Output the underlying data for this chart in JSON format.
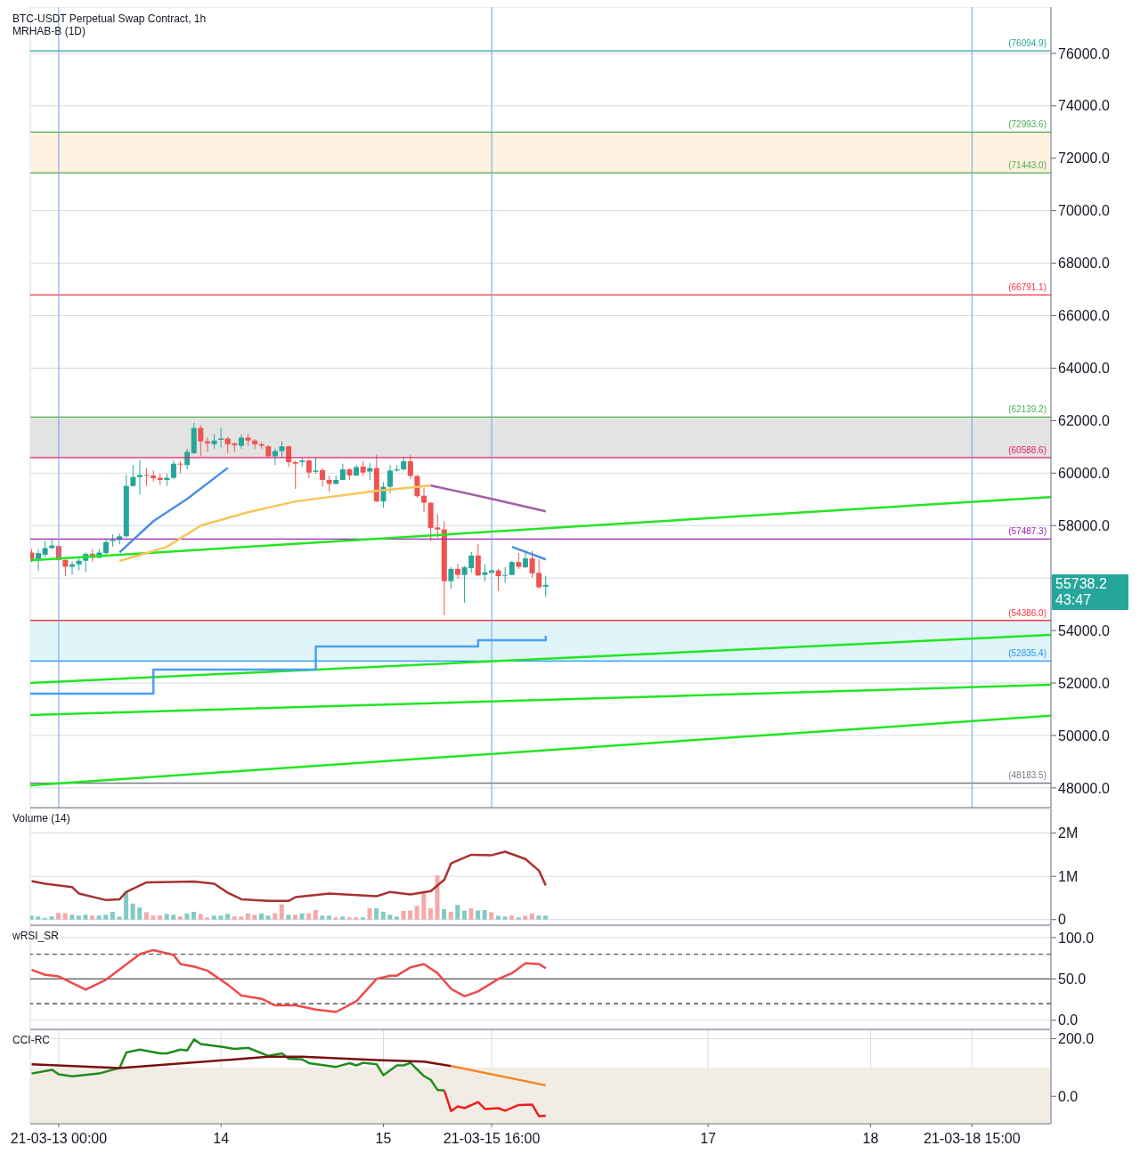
{
  "chart_data": [
    {
      "type": "candlestick",
      "title": "BTC-USDT Perpetual Swap Contract, 1h",
      "subtitle": "MRHAB-B (1D)",
      "annotations": [
        "55738.2",
        "43:47"
      ],
      "tick_labels": "y",
      "grid": true,
      "xlim": [
        "--03-12T19:48",
        "--03-19T02:40"
      ],
      "xticks": [
        {
          "value": "--03-13T00:00",
          "label": "21-03-13 00:00"
        },
        {
          "value": "--03-14T00:00",
          "label": "14"
        },
        {
          "value": "--03-15T00:00",
          "label": "15"
        },
        {
          "value": "--03-15T16:00",
          "label": "21-03-15 16:00"
        },
        {
          "value": "--03-17T00:00",
          "label": "17"
        },
        {
          "value": "--03-18T00:00",
          "label": "18"
        },
        {
          "value": "--03-18T15:00",
          "label": "21-03-18 15:00"
        }
      ],
      "ylim": [
        47250,
        77760
      ],
      "yticks": [
        {
          "value": 48000,
          "label": "48000.0"
        },
        {
          "value": 50000,
          "label": "50000.0"
        },
        {
          "value": 52000,
          "label": "52000.0"
        },
        {
          "value": 54000,
          "label": "54000.0"
        },
        {
          "value": 56000,
          "label": null
        },
        {
          "value": 58000,
          "label": "58000.0"
        },
        {
          "value": 60000,
          "label": "60000.0"
        },
        {
          "value": 62000,
          "label": "62000.0"
        },
        {
          "value": 64000,
          "label": "64000.0"
        },
        {
          "value": 66000,
          "label": "66000.0"
        },
        {
          "value": 68000,
          "label": "68000.0"
        },
        {
          "value": 70000,
          "label": "70000.0"
        },
        {
          "value": 72000,
          "label": "72000.0"
        },
        {
          "value": 74000,
          "label": "74000.0"
        },
        {
          "value": 76000,
          "label": "76000.0"
        }
      ],
      "x": [
        "--03-12T20:00",
        "--03-12T21:00",
        "--03-12T22:00",
        "--03-12T23:00",
        "--03-13T00:00",
        "--03-13T01:00",
        "--03-13T02:00",
        "--03-13T03:00",
        "--03-13T04:00",
        "--03-13T05:00",
        "--03-13T06:00",
        "--03-13T07:00",
        "--03-13T08:00",
        "--03-13T09:00",
        "--03-13T10:00",
        "--03-13T11:00",
        "--03-13T12:00",
        "--03-13T13:00",
        "--03-13T14:00",
        "--03-13T15:00",
        "--03-13T16:00",
        "--03-13T17:00",
        "--03-13T18:00",
        "--03-13T19:00",
        "--03-13T20:00",
        "--03-13T21:00",
        "--03-13T22:00",
        "--03-13T23:00",
        "--03-14T00:00",
        "--03-14T01:00",
        "--03-14T02:00",
        "--03-14T03:00",
        "--03-14T04:00",
        "--03-14T05:00",
        "--03-14T06:00",
        "--03-14T07:00",
        "--03-14T08:00",
        "--03-14T09:00",
        "--03-14T10:00",
        "--03-14T11:00",
        "--03-14T12:00",
        "--03-14T13:00",
        "--03-14T14:00",
        "--03-14T15:00",
        "--03-14T16:00",
        "--03-14T17:00",
        "--03-14T18:00",
        "--03-14T19:00",
        "--03-14T20:00",
        "--03-14T21:00",
        "--03-14T22:00",
        "--03-14T23:00",
        "--03-15T00:00",
        "--03-15T01:00",
        "--03-15T02:00",
        "--03-15T03:00",
        "--03-15T04:00",
        "--03-15T05:00",
        "--03-15T06:00",
        "--03-15T07:00",
        "--03-15T08:00",
        "--03-15T09:00",
        "--03-15T10:00",
        "--03-15T11:00",
        "--03-15T12:00",
        "--03-15T13:00",
        "--03-15T14:00",
        "--03-15T15:00",
        "--03-15T16:00",
        "--03-15T17:00",
        "--03-15T18:00",
        "--03-15T19:00",
        "--03-15T20:00",
        "--03-15T21:00",
        "--03-15T22:00",
        "--03-15T23:00",
        "--03-16T00:00"
      ],
      "ohlc": [
        [
          56970,
          57110,
          56610,
          56720
        ],
        [
          56690,
          57090,
          56270,
          56950
        ],
        [
          56890,
          57420,
          56800,
          57140
        ],
        [
          57140,
          57480,
          57110,
          57240
        ],
        [
          57220,
          57250,
          56660,
          56690
        ],
        [
          56690,
          56720,
          56070,
          56430
        ],
        [
          56430,
          56630,
          56120,
          56520
        ],
        [
          56520,
          56770,
          56290,
          56660
        ],
        [
          56660,
          56970,
          56240,
          56920
        ],
        [
          56920,
          57110,
          56630,
          56770
        ],
        [
          56770,
          57110,
          56750,
          56970
        ],
        [
          56950,
          57480,
          56860,
          57370
        ],
        [
          57400,
          57670,
          57200,
          57450
        ],
        [
          57450,
          57710,
          57290,
          57590
        ],
        [
          57590,
          59930,
          57540,
          59510
        ],
        [
          59510,
          60310,
          59480,
          59850
        ],
        [
          59850,
          60500,
          59180,
          59930
        ],
        [
          59930,
          60190,
          59510,
          59910
        ],
        [
          59910,
          60110,
          59680,
          59800
        ],
        [
          59820,
          59970,
          59550,
          59740
        ],
        [
          59740,
          59970,
          59510,
          59820
        ],
        [
          59820,
          60480,
          59770,
          60360
        ],
        [
          60360,
          60440,
          60000,
          60330
        ],
        [
          60310,
          60930,
          60140,
          60810
        ],
        [
          60760,
          61920,
          60720,
          61720
        ],
        [
          61720,
          61830,
          60640,
          61210
        ],
        [
          61210,
          61360,
          60810,
          61130
        ],
        [
          61100,
          61490,
          60930,
          61240
        ],
        [
          61270,
          61720,
          60980,
          61320
        ],
        [
          61320,
          61380,
          60760,
          61100
        ],
        [
          61130,
          61180,
          60810,
          61060
        ],
        [
          61040,
          61470,
          60930,
          61350
        ],
        [
          61350,
          61490,
          61040,
          61240
        ],
        [
          61240,
          61290,
          60930,
          61100
        ],
        [
          61100,
          61180,
          60930,
          61040
        ],
        [
          61020,
          61060,
          60610,
          60640
        ],
        [
          60640,
          60930,
          60310,
          60840
        ],
        [
          60840,
          61210,
          60590,
          61020
        ],
        [
          61020,
          61040,
          60230,
          60420
        ],
        [
          60420,
          60480,
          59400,
          60360
        ],
        [
          60420,
          60590,
          60250,
          60480
        ],
        [
          60480,
          60530,
          59800,
          60020
        ],
        [
          60050,
          60590,
          59970,
          60100
        ],
        [
          60110,
          60190,
          59480,
          59740
        ],
        [
          59740,
          59910,
          59290,
          59590
        ],
        [
          59590,
          59910,
          59570,
          59740
        ],
        [
          59740,
          60360,
          59740,
          60140
        ],
        [
          60140,
          60190,
          59740,
          59910
        ],
        [
          59910,
          60310,
          59890,
          60230
        ],
        [
          60250,
          60450,
          59890,
          60020
        ],
        [
          60060,
          60390,
          59740,
          60190
        ],
        [
          60190,
          60700,
          58900,
          58920
        ],
        [
          58920,
          59660,
          58670,
          59480
        ],
        [
          59480,
          60310,
          59230,
          60100
        ],
        [
          60100,
          60310,
          60050,
          60140
        ],
        [
          60140,
          60590,
          60110,
          60450
        ],
        [
          60450,
          60700,
          59770,
          59890
        ],
        [
          59890,
          59930,
          59060,
          59120
        ],
        [
          59140,
          59440,
          58500,
          58870
        ],
        [
          58870,
          58890,
          57400,
          57910
        ],
        [
          57930,
          58440,
          57540,
          57850
        ],
        [
          57850,
          58160,
          54580,
          55880
        ],
        [
          55880,
          56410,
          55590,
          56350
        ],
        [
          56350,
          56540,
          55980,
          56120
        ],
        [
          56120,
          56460,
          55050,
          56410
        ],
        [
          56380,
          57000,
          56200,
          56860
        ],
        [
          56860,
          57290,
          56070,
          56100
        ],
        [
          56120,
          56520,
          55880,
          56220
        ],
        [
          56200,
          56350,
          56180,
          56290
        ],
        [
          56290,
          56350,
          55500,
          56070
        ],
        [
          56090,
          56410,
          55820,
          56120
        ],
        [
          56120,
          56660,
          56100,
          56610
        ],
        [
          56610,
          56950,
          56350,
          56430
        ],
        [
          56410,
          56970,
          56380,
          56750
        ],
        [
          56750,
          57030,
          56010,
          56180
        ],
        [
          56200,
          56720,
          55590,
          55650
        ],
        [
          55670,
          56090,
          55280,
          55738.2
        ]
      ],
      "colors": [
        "#ef5350",
        "#26a69a",
        "#26a69a",
        "#26a69a",
        "#ef5350",
        "#ef5350",
        "#26a69a",
        "#26a69a",
        "#26a69a",
        "#ef5350",
        "#26a69a",
        "#26a69a",
        "#26a69a",
        "#26a69a",
        "#26a69a",
        "#26a69a",
        "#26a69a",
        "#ef5350",
        "#ef5350",
        "#ef5350",
        "#26a69a",
        "#26a69a",
        "#ef5350",
        "#26a69a",
        "#26a69a",
        "#ef5350",
        "#ef5350",
        "#26a69a",
        "#26a69a",
        "#ef5350",
        "#ef5350",
        "#26a69a",
        "#ef5350",
        "#ef5350",
        "#ef5350",
        "#ef5350",
        "#26a69a",
        "#26a69a",
        "#ef5350",
        "#ef5350",
        "#26a69a",
        "#ef5350",
        "#26a69a",
        "#ef5350",
        "#ef5350",
        "#26a69a",
        "#26a69a",
        "#ef5350",
        "#26a69a",
        "#ef5350",
        "#26a69a",
        "#ef5350",
        "#26a69a",
        "#26a69a",
        "#26a69a",
        "#26a69a",
        "#ef5350",
        "#ef5350",
        "#ef5350",
        "#ef5350",
        "#ef5350",
        "#ef5350",
        "#26a69a",
        "#ef5350",
        "#26a69a",
        "#26a69a",
        "#ef5350",
        "#26a69a",
        "#26a69a",
        "#ef5350",
        "#26a69a",
        "#26a69a",
        "#ef5350",
        "#26a69a",
        "#ef5350",
        "#ef5350",
        "#26a69a"
      ],
      "series": [
        {
          "type": "line",
          "color": "#22e622",
          "x": [
            "--03-12T19:48",
            "--03-19T02:40"
          ],
          "values": [
            56680,
            59090
          ]
        },
        {
          "type": "line",
          "color": "#22e622",
          "x": [
            "--03-12T19:48",
            "--03-19T02:40"
          ],
          "values": [
            52000,
            53830
          ]
        },
        {
          "type": "line",
          "color": "#22e622",
          "x": [
            "--03-12T19:48",
            "--03-19T02:40"
          ],
          "values": [
            50780,
            51930
          ]
        },
        {
          "type": "line",
          "color": "#22e622",
          "x": [
            "--03-12T19:48",
            "--03-19T02:40"
          ],
          "values": [
            48100,
            50750
          ]
        },
        {
          "type": "line",
          "color": "#f7c557",
          "x": [
            "--03-13T09:00",
            "--03-13T16:00",
            "--03-13T21:00",
            "--03-14T04:00",
            "--03-14T11:00",
            "--03-14T23:00",
            "--03-15T07:00"
          ],
          "values": [
            56650,
            57190,
            58000,
            58510,
            58920,
            59320,
            59530
          ]
        },
        {
          "type": "line",
          "color": "#a35ea8",
          "x": [
            "--03-15T07:00",
            "--03-15T16:00",
            "--03-16T00:00"
          ],
          "values": [
            59530,
            59020,
            58540
          ]
        },
        {
          "type": "line",
          "color": "#4a90e2",
          "x": [
            "--03-13T09:00",
            "--03-13T14:00",
            "--03-13T19:00",
            "--03-14T01:00"
          ],
          "values": [
            56980,
            58170,
            59020,
            60200
          ]
        },
        {
          "type": "line",
          "color": "#4a90e2",
          "x": [
            "--03-15T19:00",
            "--03-16T00:00"
          ],
          "values": [
            57190,
            56710
          ]
        },
        {
          "type": "step",
          "color": "#4a9ff5",
          "x": [
            "--03-12T19:48",
            "--03-13T14:00",
            "--03-14T14:00",
            "--03-15T14:00",
            "--03-16T00:00"
          ],
          "values": [
            51590,
            52510,
            53390,
            53630,
            53800
          ]
        }
      ],
      "ref_lines": [
        {
          "axis": "y",
          "value": 76094.9,
          "label": "(76094.9)",
          "color": "#26a69a"
        },
        {
          "axis": "y",
          "value": 72993.6,
          "label": "(72993.6)",
          "color": "#4caf50"
        },
        {
          "axis": "y",
          "value": 71443.0,
          "label": "(71443.0)",
          "color": "#4caf50"
        },
        {
          "axis": "y",
          "value": 66791.1,
          "label": "(66791.1)",
          "color": "#f23645"
        },
        {
          "axis": "y",
          "value": 62139.2,
          "label": "(62139.2)",
          "color": "#4caf50"
        },
        {
          "axis": "y",
          "value": 60588.6,
          "label": "(60588.6)",
          "color": "#e91e63"
        },
        {
          "axis": "y",
          "value": 57487.3,
          "label": "(57487.3)",
          "color": "#9c27b0"
        },
        {
          "axis": "y",
          "value": 54386.0,
          "label": "(54386.0)",
          "color": "#f23645"
        },
        {
          "axis": "y",
          "value": 52835.4,
          "label": "(52835.4)",
          "color": "#2196f3"
        },
        {
          "axis": "y",
          "value": 48183.5,
          "label": "(48183.5)",
          "color": "#787b86"
        },
        {
          "axis": "x",
          "value": "--03-13T00:00",
          "color": "#6fa0f0"
        },
        {
          "axis": "x",
          "value": "--03-15T16:00",
          "color": "#6fa0f0"
        },
        {
          "axis": "x",
          "value": "--03-18T15:00",
          "color": "#6fa0f0"
        }
      ],
      "bands": [
        {
          "axis": "y",
          "from": 71443.0,
          "to": 72993.6,
          "color": "#fff1e0"
        },
        {
          "axis": "y",
          "from": 60588.6,
          "to": 62139.2,
          "color": "#e3e3e3"
        },
        {
          "axis": "y",
          "from": 52835.4,
          "to": 54386.0,
          "color": "#e0f5fa"
        }
      ]
    },
    {
      "type": "bar",
      "title": "Volume (14)",
      "tick_labels": "y",
      "grid": true,
      "xlim": [
        "--03-12T19:48",
        "--03-19T02:40"
      ],
      "xticks": [
        {
          "value": "--03-13T00:00",
          "label": "21-03-13 00:00"
        },
        {
          "value": "--03-14T00:00",
          "label": "14"
        },
        {
          "value": "--03-15T00:00",
          "label": "15"
        },
        {
          "value": "--03-15T16:00",
          "label": "21-03-15 16:00"
        },
        {
          "value": "--03-17T00:00",
          "label": "17"
        },
        {
          "value": "--03-18T00:00",
          "label": "18"
        },
        {
          "value": "--03-18T15:00",
          "label": "21-03-18 15:00"
        }
      ],
      "ylim": [
        -0.13,
        2.57
      ],
      "yticks": [
        0,
        {
          "value": 1,
          "label": "1M"
        },
        {
          "value": 2,
          "label": "2M"
        }
      ],
      "series": [
        {
          "type": "bar",
          "x": [
            "--03-12T20:00",
            "--03-12T21:00",
            "--03-12T22:00",
            "--03-12T23:00",
            "--03-13T00:00",
            "--03-13T01:00",
            "--03-13T02:00",
            "--03-13T03:00",
            "--03-13T04:00",
            "--03-13T05:00",
            "--03-13T06:00",
            "--03-13T07:00",
            "--03-13T08:00",
            "--03-13T09:00",
            "--03-13T10:00",
            "--03-13T11:00",
            "--03-13T12:00",
            "--03-13T13:00",
            "--03-13T14:00",
            "--03-13T15:00",
            "--03-13T16:00",
            "--03-13T17:00",
            "--03-13T18:00",
            "--03-13T19:00",
            "--03-13T20:00",
            "--03-13T21:00",
            "--03-13T22:00",
            "--03-13T23:00",
            "--03-14T00:00",
            "--03-14T01:00",
            "--03-14T02:00",
            "--03-14T03:00",
            "--03-14T04:00",
            "--03-14T05:00",
            "--03-14T06:00",
            "--03-14T07:00",
            "--03-14T08:00",
            "--03-14T09:00",
            "--03-14T10:00",
            "--03-14T11:00",
            "--03-14T12:00",
            "--03-14T13:00",
            "--03-14T14:00",
            "--03-14T15:00",
            "--03-14T16:00",
            "--03-14T17:00",
            "--03-14T18:00",
            "--03-14T19:00",
            "--03-14T20:00",
            "--03-14T21:00",
            "--03-14T22:00",
            "--03-14T23:00",
            "--03-15T00:00",
            "--03-15T01:00",
            "--03-15T02:00",
            "--03-15T03:00",
            "--03-15T04:00",
            "--03-15T05:00",
            "--03-15T06:00",
            "--03-15T07:00",
            "--03-15T08:00",
            "--03-15T09:00",
            "--03-15T10:00",
            "--03-15T11:00",
            "--03-15T12:00",
            "--03-15T13:00",
            "--03-15T14:00",
            "--03-15T15:00",
            "--03-15T16:00",
            "--03-15T17:00",
            "--03-15T18:00",
            "--03-15T19:00",
            "--03-15T20:00",
            "--03-15T21:00",
            "--03-15T22:00",
            "--03-15T23:00",
            "--03-16T00:00"
          ],
          "values": [
            0.09,
            0.07,
            0.04,
            0.07,
            0.15,
            0.15,
            0.11,
            0.09,
            0.11,
            0.09,
            0.09,
            0.11,
            0.18,
            0.07,
            0.65,
            0.37,
            0.28,
            0.17,
            0.09,
            0.09,
            0.13,
            0.11,
            0.07,
            0.14,
            0.18,
            0.13,
            0.05,
            0.09,
            0.09,
            0.13,
            0.07,
            0.07,
            0.14,
            0.11,
            0.14,
            0.09,
            0.15,
            0.35,
            0.11,
            0.11,
            0.14,
            0.14,
            0.22,
            0.09,
            0.09,
            0.05,
            0.07,
            0.05,
            0.05,
            0.05,
            0.26,
            0.26,
            0.18,
            0.11,
            0.07,
            0.2,
            0.21,
            0.32,
            0.62,
            0.26,
            1.02,
            0.24,
            0.18,
            0.34,
            0.21,
            0.26,
            0.21,
            0.22,
            0.17,
            0.09,
            0.07,
            0.09,
            0.05,
            0.09,
            0.14,
            0.09,
            0.09
          ],
          "colors": [
            "#80cbc4",
            "#80cbc4",
            "#80cbc4",
            "#80cbc4",
            "#f4a9a8",
            "#f4a9a8",
            "#80cbc4",
            "#80cbc4",
            "#80cbc4",
            "#f4a9a8",
            "#80cbc4",
            "#80cbc4",
            "#80cbc4",
            "#80cbc4",
            "#80cbc4",
            "#80cbc4",
            "#80cbc4",
            "#f4a9a8",
            "#f4a9a8",
            "#f4a9a8",
            "#80cbc4",
            "#80cbc4",
            "#f4a9a8",
            "#80cbc4",
            "#80cbc4",
            "#f4a9a8",
            "#f4a9a8",
            "#80cbc4",
            "#80cbc4",
            "#80cbc4",
            "#f4a9a8",
            "#f4a9a8",
            "#f4a9a8",
            "#f4a9a8",
            "#80cbc4",
            "#80cbc4",
            "#f4a9a8",
            "#f4a9a8",
            "#80cbc4",
            "#f4a9a8",
            "#80cbc4",
            "#f4a9a8",
            "#f4a9a8",
            "#80cbc4",
            "#80cbc4",
            "#f4a9a8",
            "#80cbc4",
            "#f4a9a8",
            "#f4a9a8",
            "#80cbc4",
            "#f4a9a8",
            "#80cbc4",
            "#80cbc4",
            "#80cbc4",
            "#80cbc4",
            "#f4a9a8",
            "#f4a9a8",
            "#f4a9a8",
            "#f4a9a8",
            "#f4a9a8",
            "#f4a9a8",
            "#80cbc4",
            "#f4a9a8",
            "#80cbc4",
            "#80cbc4",
            "#f4a9a8",
            "#80cbc4",
            "#80cbc4",
            "#f4a9a8",
            "#80cbc4",
            "#80cbc4",
            "#f4a9a8",
            "#80cbc4",
            "#f4a9a8",
            "#f4a9a8",
            "#80cbc4",
            "#80cbc4"
          ]
        },
        {
          "type": "line",
          "color": "#a83232",
          "x": [
            "--03-12T20:00",
            "--03-12T22:00",
            "--03-13T02:00",
            "--03-13T03:00",
            "--03-13T07:00",
            "--03-13T09:00",
            "--03-13T10:00",
            "--03-13T13:00",
            "--03-13T20:00",
            "--03-13T23:00",
            "--03-14T01:00",
            "--03-14T03:00",
            "--03-14T07:00",
            "--03-14T10:00",
            "--03-14T11:00",
            "--03-14T16:00",
            "--03-14T23:00",
            "--03-15T01:00",
            "--03-15T04:00",
            "--03-15T07:00",
            "--03-15T09:00",
            "--03-15T10:00",
            "--03-15T13:00",
            "--03-15T16:00",
            "--03-15T18:00",
            "--03-15T21:00",
            "--03-15T23:00",
            "--03-16T00:00"
          ],
          "values": [
            0.89,
            0.83,
            0.75,
            0.6,
            0.45,
            0.47,
            0.64,
            0.86,
            0.88,
            0.83,
            0.62,
            0.47,
            0.43,
            0.43,
            0.52,
            0.6,
            0.54,
            0.64,
            0.58,
            0.66,
            0.92,
            1.3,
            1.5,
            1.49,
            1.57,
            1.4,
            1.13,
            0.79
          ]
        }
      ]
    },
    {
      "type": "line",
      "title": "wRSI_SR",
      "tick_labels": "y",
      "grid": true,
      "xlim": [
        "--03-12T19:48",
        "--03-19T02:40"
      ],
      "xticks": [
        {
          "value": "--03-13T00:00",
          "label": "21-03-13 00:00"
        },
        {
          "value": "--03-14T00:00",
          "label": "14"
        },
        {
          "value": "--03-15T00:00",
          "label": "15"
        },
        {
          "value": "--03-15T16:00",
          "label": "21-03-15 16:00"
        },
        {
          "value": "--03-17T00:00",
          "label": "17"
        },
        {
          "value": "--03-18T00:00",
          "label": "18"
        },
        {
          "value": "--03-18T15:00",
          "label": "21-03-18 15:00"
        }
      ],
      "ylim": [
        -11,
        114
      ],
      "yticks": [
        {
          "value": 0,
          "label": "0.0"
        },
        {
          "value": 50,
          "label": "50.0"
        },
        {
          "value": 100,
          "label": "100.0"
        }
      ],
      "series": [
        {
          "type": "line",
          "color": "#ef4a4a",
          "x": [
            "--03-12T20:00",
            "--03-12T22:00",
            "--03-13T00:00",
            "--03-13T04:00",
            "--03-13T07:00",
            "--03-13T12:00",
            "--03-13T14:00",
            "--03-13T17:00",
            "--03-13T18:00",
            "--03-13T20:00",
            "--03-13T22:00",
            "--03-14T01:00",
            "--03-14T03:00",
            "--03-14T06:00",
            "--03-14T08:00",
            "--03-14T11:00",
            "--03-14T14:00",
            "--03-14T17:00",
            "--03-14T20:00",
            "--03-14T23:00",
            "--03-15T01:00",
            "--03-15T02:00",
            "--03-15T04:00",
            "--03-15T06:00",
            "--03-15T08:00",
            "--03-15T10:00",
            "--03-15T12:00",
            "--03-15T14:00",
            "--03-15T17:00",
            "--03-15T19:00",
            "--03-15T21:00",
            "--03-15T23:00",
            "--03-16T00:00"
          ],
          "values": [
            61,
            55,
            53,
            37,
            49,
            80,
            85,
            79,
            68,
            65,
            60,
            43,
            30,
            26,
            18,
            18,
            13,
            10,
            23,
            50,
            54,
            54,
            64,
            68,
            57,
            38,
            29,
            35,
            50,
            57,
            69,
            68,
            63
          ]
        }
      ],
      "ref_lines": [
        {
          "axis": "y",
          "value": 80,
          "color": "#555555",
          "line_style": "dashed"
        },
        {
          "axis": "y",
          "value": 50,
          "color": "#555555"
        },
        {
          "axis": "y",
          "value": 20,
          "color": "#555555",
          "line_style": "dashed"
        }
      ]
    },
    {
      "type": "line",
      "title": "CCI-RC",
      "grid": true,
      "xlim": [
        "--03-12T19:48",
        "--03-19T02:40"
      ],
      "xticks": [
        {
          "value": "--03-13T00:00",
          "label": "21-03-13 00:00"
        },
        {
          "value": "--03-14T00:00",
          "label": "14"
        },
        {
          "value": "--03-15T00:00",
          "label": "15"
        },
        {
          "value": "--03-15T16:00",
          "label": "21-03-15 16:00"
        },
        {
          "value": "--03-17T00:00",
          "label": "17"
        },
        {
          "value": "--03-18T00:00",
          "label": "18"
        },
        {
          "value": "--03-18T15:00",
          "label": "21-03-18 15:00"
        }
      ],
      "ylim": [
        -95,
        229
      ],
      "yticks": [
        {
          "value": 0,
          "label": "0.0"
        },
        {
          "value": 200,
          "label": "200.0"
        }
      ],
      "series": [
        {
          "type": "line",
          "color": "#1e8c1e",
          "x": [
            "--03-12T20:00",
            "--03-12T23:00",
            "--03-13T00:00",
            "--03-13T02:00",
            "--03-13T06:00",
            "--03-13T08:00",
            "--03-13T09:00",
            "--03-13T10:00",
            "--03-13T12:00",
            "--03-13T15:00",
            "--03-13T16:00",
            "--03-13T18:00",
            "--03-13T19:00",
            "--03-13T20:00",
            "--03-13T21:00",
            "--03-14T00:00",
            "--03-14T02:00",
            "--03-14T04:00",
            "--03-14T07:00",
            "--03-14T09:00",
            "--03-14T10:00",
            "--03-14T12:00",
            "--03-14T13:00",
            "--03-14T17:00",
            "--03-14T19:00",
            "--03-14T20:00",
            "--03-14T21:00",
            "--03-14T23:00",
            "--03-15T00:00",
            "--03-15T02:00",
            "--03-15T03:00",
            "--03-15T04:00",
            "--03-15T06:00",
            "--03-15T07:00",
            "--03-15T08:00",
            "--03-15T09:00"
          ],
          "values": [
            79,
            92,
            76,
            69,
            79,
            92,
            98,
            152,
            162,
            149,
            149,
            162,
            159,
            197,
            181,
            172,
            164,
            168,
            140,
            149,
            130,
            128,
            115,
            102,
            115,
            107,
            116,
            111,
            73,
            107,
            107,
            116,
            70,
            57,
            22,
            20
          ]
        },
        {
          "type": "line",
          "color": "#f01e1e",
          "x": [
            "--03-15T09:00",
            "--03-15T10:00",
            "--03-15T11:00",
            "--03-15T12:00",
            "--03-15T14:00",
            "--03-15T15:00",
            "--03-15T17:00",
            "--03-15T18:00",
            "--03-15T20:00",
            "--03-15T22:00",
            "--03-15T23:00",
            "--03-16T00:00"
          ],
          "values": [
            20,
            -51,
            -35,
            -41,
            -20,
            -44,
            -41,
            -50,
            -30,
            -29,
            -69,
            -67
          ]
        },
        {
          "type": "line",
          "color": "#7a1010",
          "x": [
            "--03-12T20:00",
            "--03-13T09:00",
            "--03-14T07:00",
            "--03-14T12:00",
            "--03-14T23:00",
            "--03-15T06:00",
            "--03-15T10:00"
          ],
          "values": [
            111,
            98,
            137,
            137,
            126,
            120,
            105
          ]
        },
        {
          "type": "line",
          "color": "#f5841f",
          "x": [
            "--03-15T10:00",
            "--03-16T00:00"
          ],
          "values": [
            105,
            38
          ]
        }
      ],
      "bands": [
        {
          "axis": "y",
          "from": -95,
          "to": 100,
          "color": "#f2ede4"
        }
      ]
    }
  ]
}
